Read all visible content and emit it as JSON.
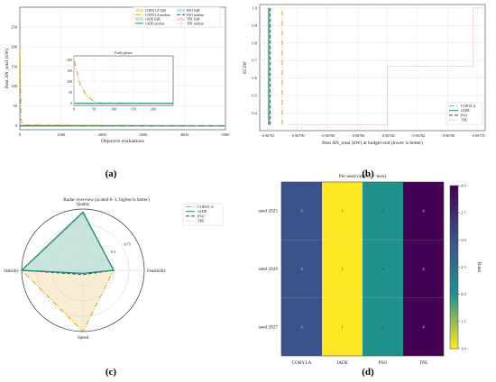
{
  "colors": {
    "cobyla": "#d4a020",
    "jade": "#1f8a78",
    "pso": "#1f4f7a",
    "tpe": "#e59a9a",
    "cobyla_iqr": "#f4dfb0",
    "jade_iqr": "#bfe3dc",
    "pso_iqr": "#c9dbea",
    "tpe_iqr": "#f6d3d3",
    "text": "#222222",
    "grid": "#e6e6e6"
  },
  "panels": {
    "a": {
      "caption": "(a)"
    },
    "b": {
      "caption": "(b)"
    },
    "c": {
      "caption": "(c)"
    },
    "d": {
      "caption": "(d)"
    }
  },
  "chart_data": [
    {
      "id": "a",
      "type": "line",
      "title": "",
      "xlabel": "Objective evaluations",
      "ylabel": "Best ΔN_total (kW)",
      "xlim": [
        0,
        5000
      ],
      "ylim": [
        -10,
        300
      ],
      "xticks": [
        0,
        1000,
        2000,
        3000,
        4000,
        5000
      ],
      "yticks": [
        0,
        50,
        100,
        150,
        200,
        250
      ],
      "grid": true,
      "legend_position": "top-right",
      "legend_entries": [
        "COBYLA IQR",
        "COBYLA median",
        "JADE IQR",
        "JADE median",
        "PSO IQR",
        "PSO median",
        "TPE IQR",
        "TPE median"
      ],
      "series": [
        {
          "name": "COBYLA median",
          "x": [
            1,
            30,
            60,
            5000
          ],
          "y": [
            195,
            15,
            2,
            0
          ]
        },
        {
          "name": "JADE median",
          "x": [
            1,
            5000
          ],
          "y": [
            0,
            0
          ]
        },
        {
          "name": "PSO median",
          "x": [
            1,
            5000
          ],
          "y": [
            0,
            0
          ]
        },
        {
          "name": "TPE median",
          "x": [
            1,
            5000
          ],
          "y": [
            0,
            0
          ]
        }
      ],
      "inset": {
        "title": "Early phase",
        "xlim": [
          0,
          250
        ],
        "ylim": [
          -10,
          220
        ],
        "xticks": [
          0,
          50,
          100,
          150,
          200
        ],
        "yticks": [
          0,
          50,
          100,
          150,
          200
        ],
        "series": [
          {
            "name": "COBYLA median",
            "x": [
              1,
              15,
              30,
              45,
              60,
              250
            ],
            "y": [
              195,
              90,
              40,
              15,
              2,
              0
            ]
          },
          {
            "name": "JADE median",
            "x": [
              1,
              250
            ],
            "y": [
              0,
              0
            ]
          }
        ]
      }
    },
    {
      "id": "b",
      "type": "line",
      "title": "",
      "xlabel": "Best ΔN_total (kW) at budget end (lower is better)",
      "ylabel": "ECDF",
      "xlim": [
        -0.967925,
        -0.967775
      ],
      "ylim": [
        0.3,
        1.02
      ],
      "xticks": [
        -0.96792,
        -0.9679,
        -0.96788,
        -0.96786,
        -0.96784,
        -0.96782,
        -0.9678,
        -0.96778
      ],
      "xtick_labels": [
        "−0.96792",
        "−0.96790",
        "−0.96788",
        "−0.96786",
        "−0.96784",
        "−0.96782",
        "−0.96780",
        "−0.96778"
      ],
      "yticks": [
        0.4,
        0.5,
        0.6,
        0.7,
        0.8,
        0.9,
        1.0
      ],
      "grid": true,
      "legend_position": "lower-right",
      "series": [
        {
          "name": "COBYLA",
          "x": [
            -0.96791,
            -0.96791
          ],
          "y": [
            0.333,
            1.0
          ]
        },
        {
          "name": "JADE",
          "x": [
            -0.967919,
            -0.967919
          ],
          "y": [
            0.333,
            1.0
          ]
        },
        {
          "name": "PSO",
          "x": [
            -0.967918,
            -0.967918
          ],
          "y": [
            0.333,
            1.0
          ]
        },
        {
          "name": "TPE",
          "x": [
            -0.967905,
            -0.96784,
            -0.96784,
            -0.967783,
            -0.967783,
            -0.967776
          ],
          "y": [
            0.333,
            0.333,
            0.667,
            0.667,
            1.0,
            1.0
          ]
        }
      ]
    },
    {
      "id": "c",
      "type": "radar",
      "title": "Radar overview (scaled 0–1, higher is better)",
      "axes": [
        "Quality",
        "Feasibility",
        "Speed",
        "Stability"
      ],
      "rticks": [
        0.25,
        0.5,
        0.75
      ],
      "legend_position": "top-right",
      "series": [
        {
          "name": "COBYLA",
          "values": [
            0.9,
            0.5,
            1.0,
            1.0
          ]
        },
        {
          "name": "JADE",
          "values": [
            0.95,
            0.5,
            0.05,
            1.0
          ]
        },
        {
          "name": "PSO",
          "values": [
            0.93,
            0.5,
            0.07,
            1.0
          ]
        },
        {
          "name": "TPE",
          "values": [
            0.0,
            0.5,
            0.0,
            1.0
          ]
        }
      ]
    },
    {
      "id": "d",
      "type": "heatmap",
      "title": "Per-seed rank (1 = best)",
      "x_categories": [
        "COBYLA",
        "JADE",
        "PSO",
        "TPE"
      ],
      "y_categories": [
        "seed 2025",
        "seed 2026",
        "seed 2027"
      ],
      "values": [
        [
          3,
          1,
          2,
          4
        ],
        [
          3,
          1,
          2,
          4
        ],
        [
          3,
          1,
          2,
          4
        ]
      ],
      "colorbar_label": "Rank",
      "colorbar_range": [
        1.0,
        4.0
      ],
      "colorbar_ticks": [
        1.0,
        1.5,
        2.0,
        2.5,
        3.0,
        3.5,
        4.0
      ]
    }
  ]
}
